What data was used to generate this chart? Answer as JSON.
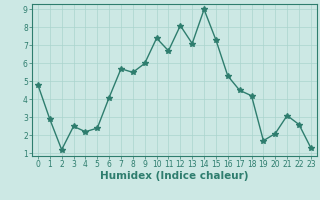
{
  "x": [
    0,
    1,
    2,
    3,
    4,
    5,
    6,
    7,
    8,
    9,
    10,
    11,
    12,
    13,
    14,
    15,
    16,
    17,
    18,
    19,
    20,
    21,
    22,
    23
  ],
  "y": [
    4.8,
    2.9,
    1.2,
    2.5,
    2.2,
    2.4,
    4.1,
    5.7,
    5.5,
    6.0,
    7.4,
    6.7,
    8.1,
    7.1,
    9.0,
    7.3,
    5.3,
    4.5,
    4.2,
    1.7,
    2.1,
    3.1,
    2.6,
    1.3
  ],
  "line_color": "#2e7d6e",
  "marker": "*",
  "marker_size": 4,
  "bg_color": "#cce8e4",
  "grid_color": "#aad4ce",
  "xlabel": "Humidex (Indice chaleur)",
  "ylim": [
    1,
    9
  ],
  "xlim": [
    -0.5,
    23.5
  ],
  "yticks": [
    1,
    2,
    3,
    4,
    5,
    6,
    7,
    8,
    9
  ],
  "xticks": [
    0,
    1,
    2,
    3,
    4,
    5,
    6,
    7,
    8,
    9,
    10,
    11,
    12,
    13,
    14,
    15,
    16,
    17,
    18,
    19,
    20,
    21,
    22,
    23
  ],
  "tick_label_fontsize": 5.5,
  "xlabel_fontsize": 7.5,
  "tick_color": "#2e7d6e",
  "axis_color": "#2e7d6e",
  "spine_color": "#2e7d6e"
}
